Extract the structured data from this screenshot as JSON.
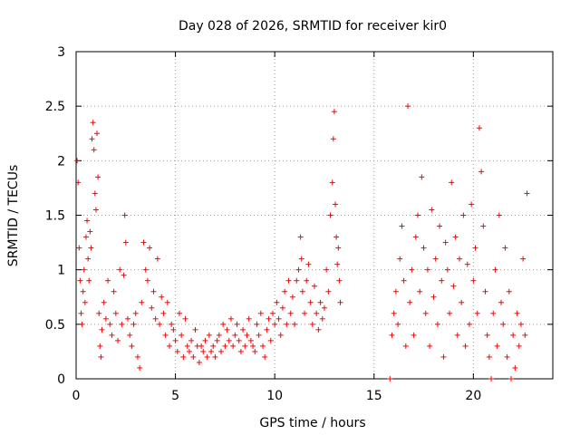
{
  "chart_data": {
    "type": "scatter",
    "title": "Day 028 of 2026, SRMTID for receiver kir0",
    "xlabel": "GPS time / hours",
    "ylabel": "SRMTID / TECUs",
    "xlim": [
      0,
      24
    ],
    "ylim": [
      0,
      3
    ],
    "xticks": [
      0,
      5,
      10,
      15,
      20
    ],
    "yticks": [
      0,
      0.5,
      1,
      1.5,
      2,
      2.5,
      3
    ],
    "ytick_labels": [
      "0",
      "0.5",
      "1",
      "1.5",
      "2",
      "2.5",
      "3"
    ],
    "grid": true,
    "marker": "+",
    "series": [
      {
        "name": "SRMTID",
        "color": "#ff0000",
        "points": [
          [
            0.05,
            2.0
          ],
          [
            0.1,
            1.8
          ],
          [
            0.15,
            1.2
          ],
          [
            0.2,
            0.9
          ],
          [
            0.25,
            0.6
          ],
          [
            0.3,
            0.5
          ],
          [
            0.35,
            0.8
          ],
          [
            0.4,
            1.0
          ],
          [
            0.45,
            0.7
          ],
          [
            0.5,
            1.3
          ],
          [
            0.55,
            1.45
          ],
          [
            0.6,
            1.1
          ],
          [
            0.65,
            0.9
          ],
          [
            0.7,
            1.35
          ],
          [
            0.75,
            1.2
          ],
          [
            0.8,
            2.2
          ],
          [
            0.85,
            2.35
          ],
          [
            0.9,
            2.1
          ],
          [
            0.95,
            1.7
          ],
          [
            1.0,
            1.55
          ],
          [
            1.05,
            2.25
          ],
          [
            1.1,
            1.85
          ],
          [
            1.15,
            0.6
          ],
          [
            1.2,
            0.3
          ],
          [
            1.25,
            0.2
          ],
          [
            1.3,
            0.45
          ],
          [
            1.4,
            0.7
          ],
          [
            1.5,
            0.55
          ],
          [
            1.6,
            0.9
          ],
          [
            1.7,
            0.5
          ],
          [
            1.8,
            0.4
          ],
          [
            1.9,
            0.8
          ],
          [
            2.0,
            0.6
          ],
          [
            2.1,
            0.35
          ],
          [
            2.2,
            1.0
          ],
          [
            2.3,
            0.5
          ],
          [
            2.4,
            0.95
          ],
          [
            2.45,
            1.5
          ],
          [
            2.5,
            1.25
          ],
          [
            2.6,
            0.55
          ],
          [
            2.7,
            0.4
          ],
          [
            2.8,
            0.3
          ],
          [
            2.9,
            0.5
          ],
          [
            3.0,
            0.6
          ],
          [
            3.1,
            0.2
          ],
          [
            3.2,
            0.1
          ],
          [
            3.3,
            0.7
          ],
          [
            3.4,
            1.25
          ],
          [
            3.5,
            1.0
          ],
          [
            3.6,
            0.9
          ],
          [
            3.7,
            1.2
          ],
          [
            3.8,
            0.65
          ],
          [
            3.9,
            0.8
          ],
          [
            4.0,
            0.55
          ],
          [
            4.1,
            1.1
          ],
          [
            4.2,
            0.5
          ],
          [
            4.3,
            0.75
          ],
          [
            4.4,
            0.6
          ],
          [
            4.5,
            0.4
          ],
          [
            4.6,
            0.7
          ],
          [
            4.7,
            0.3
          ],
          [
            4.8,
            0.5
          ],
          [
            4.9,
            0.45
          ],
          [
            5.0,
            0.35
          ],
          [
            5.1,
            0.25
          ],
          [
            5.2,
            0.6
          ],
          [
            5.3,
            0.4
          ],
          [
            5.4,
            0.2
          ],
          [
            5.5,
            0.55
          ],
          [
            5.6,
            0.3
          ],
          [
            5.7,
            0.25
          ],
          [
            5.8,
            0.35
          ],
          [
            5.9,
            0.2
          ],
          [
            6.0,
            0.45
          ],
          [
            6.1,
            0.3
          ],
          [
            6.2,
            0.15
          ],
          [
            6.3,
            0.3
          ],
          [
            6.4,
            0.25
          ],
          [
            6.5,
            0.35
          ],
          [
            6.6,
            0.2
          ],
          [
            6.7,
            0.4
          ],
          [
            6.8,
            0.25
          ],
          [
            6.9,
            0.3
          ],
          [
            7.0,
            0.2
          ],
          [
            7.1,
            0.35
          ],
          [
            7.2,
            0.4
          ],
          [
            7.3,
            0.25
          ],
          [
            7.4,
            0.5
          ],
          [
            7.5,
            0.3
          ],
          [
            7.6,
            0.45
          ],
          [
            7.7,
            0.35
          ],
          [
            7.8,
            0.55
          ],
          [
            7.9,
            0.3
          ],
          [
            8.0,
            0.4
          ],
          [
            8.1,
            0.5
          ],
          [
            8.2,
            0.35
          ],
          [
            8.3,
            0.25
          ],
          [
            8.4,
            0.45
          ],
          [
            8.5,
            0.3
          ],
          [
            8.6,
            0.4
          ],
          [
            8.7,
            0.55
          ],
          [
            8.8,
            0.35
          ],
          [
            8.9,
            0.3
          ],
          [
            9.0,
            0.25
          ],
          [
            9.1,
            0.5
          ],
          [
            9.2,
            0.4
          ],
          [
            9.3,
            0.6
          ],
          [
            9.4,
            0.3
          ],
          [
            9.5,
            0.2
          ],
          [
            9.6,
            0.45
          ],
          [
            9.7,
            0.55
          ],
          [
            9.8,
            0.35
          ],
          [
            9.9,
            0.6
          ],
          [
            10.0,
            0.5
          ],
          [
            10.1,
            0.7
          ],
          [
            10.2,
            0.55
          ],
          [
            10.3,
            0.4
          ],
          [
            10.4,
            0.65
          ],
          [
            10.5,
            0.8
          ],
          [
            10.6,
            0.5
          ],
          [
            10.7,
            0.9
          ],
          [
            10.8,
            0.6
          ],
          [
            10.9,
            0.75
          ],
          [
            11.0,
            0.5
          ],
          [
            11.1,
            0.9
          ],
          [
            11.2,
            1.0
          ],
          [
            11.3,
            1.3
          ],
          [
            11.35,
            1.1
          ],
          [
            11.4,
            0.8
          ],
          [
            11.5,
            0.6
          ],
          [
            11.6,
            0.9
          ],
          [
            11.7,
            1.05
          ],
          [
            11.8,
            0.7
          ],
          [
            11.9,
            0.5
          ],
          [
            12.0,
            0.85
          ],
          [
            12.1,
            0.6
          ],
          [
            12.2,
            0.45
          ],
          [
            12.3,
            0.7
          ],
          [
            12.4,
            0.55
          ],
          [
            12.5,
            0.65
          ],
          [
            12.6,
            1.0
          ],
          [
            12.7,
            0.8
          ],
          [
            12.8,
            1.5
          ],
          [
            12.9,
            1.8
          ],
          [
            12.95,
            2.2
          ],
          [
            13.0,
            2.45
          ],
          [
            13.05,
            1.6
          ],
          [
            13.1,
            1.3
          ],
          [
            13.15,
            1.05
          ],
          [
            13.2,
            1.2
          ],
          [
            13.25,
            0.9
          ],
          [
            13.3,
            0.7
          ],
          [
            15.8,
            0.0
          ],
          [
            15.9,
            0.4
          ],
          [
            16.0,
            0.6
          ],
          [
            16.1,
            0.8
          ],
          [
            16.2,
            0.5
          ],
          [
            16.3,
            1.1
          ],
          [
            16.4,
            1.4
          ],
          [
            16.5,
            0.9
          ],
          [
            16.6,
            0.3
          ],
          [
            16.7,
            2.5
          ],
          [
            16.8,
            0.7
          ],
          [
            16.9,
            1.0
          ],
          [
            17.0,
            0.4
          ],
          [
            17.1,
            1.3
          ],
          [
            17.2,
            1.5
          ],
          [
            17.3,
            0.8
          ],
          [
            17.4,
            1.85
          ],
          [
            17.5,
            1.2
          ],
          [
            17.6,
            0.6
          ],
          [
            17.7,
            1.0
          ],
          [
            17.8,
            0.3
          ],
          [
            17.9,
            1.55
          ],
          [
            18.0,
            0.75
          ],
          [
            18.1,
            1.1
          ],
          [
            18.2,
            0.5
          ],
          [
            18.3,
            1.4
          ],
          [
            18.4,
            0.9
          ],
          [
            18.5,
            0.2
          ],
          [
            18.6,
            1.25
          ],
          [
            18.7,
            1.0
          ],
          [
            18.8,
            0.6
          ],
          [
            18.9,
            1.8
          ],
          [
            19.0,
            0.85
          ],
          [
            19.1,
            1.3
          ],
          [
            19.2,
            0.4
          ],
          [
            19.3,
            1.1
          ],
          [
            19.4,
            0.7
          ],
          [
            19.5,
            1.5
          ],
          [
            19.6,
            0.3
          ],
          [
            19.7,
            1.05
          ],
          [
            19.8,
            0.5
          ],
          [
            19.9,
            1.6
          ],
          [
            20.0,
            0.9
          ],
          [
            20.1,
            1.2
          ],
          [
            20.2,
            0.6
          ],
          [
            20.3,
            2.3
          ],
          [
            20.4,
            1.9
          ],
          [
            20.5,
            1.4
          ],
          [
            20.6,
            0.8
          ],
          [
            20.7,
            0.4
          ],
          [
            20.8,
            0.2
          ],
          [
            20.9,
            0.0
          ],
          [
            21.0,
            0.6
          ],
          [
            21.1,
            1.0
          ],
          [
            21.2,
            0.3
          ],
          [
            21.3,
            1.5
          ],
          [
            21.4,
            0.7
          ],
          [
            21.5,
            0.5
          ],
          [
            21.6,
            1.2
          ],
          [
            21.7,
            0.2
          ],
          [
            21.8,
            0.8
          ],
          [
            21.9,
            0.0
          ],
          [
            22.0,
            0.4
          ],
          [
            22.1,
            0.1
          ],
          [
            22.2,
            0.6
          ],
          [
            22.3,
            0.3
          ],
          [
            22.4,
            0.5
          ],
          [
            22.5,
            1.1
          ],
          [
            22.6,
            0.4
          ],
          [
            22.7,
            1.7
          ]
        ]
      }
    ]
  }
}
